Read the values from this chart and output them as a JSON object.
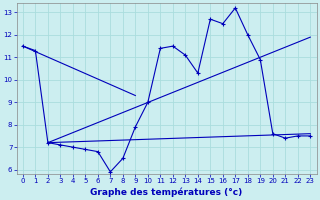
{
  "xlabel": "Graphe des températures (°c)",
  "xlim": [
    -0.5,
    23.5
  ],
  "ylim": [
    5.8,
    13.4
  ],
  "yticks": [
    6,
    7,
    8,
    9,
    10,
    11,
    12,
    13
  ],
  "xticks": [
    0,
    1,
    2,
    3,
    4,
    5,
    6,
    7,
    8,
    9,
    10,
    11,
    12,
    13,
    14,
    15,
    16,
    17,
    18,
    19,
    20,
    21,
    22,
    23
  ],
  "bg_color": "#cceef0",
  "grid_color": "#aadddd",
  "line_color": "#0000bb",
  "series1_x": [
    0,
    1,
    2,
    3,
    4,
    5,
    6,
    7,
    8,
    9,
    10,
    11,
    12,
    13,
    14,
    15,
    16,
    17,
    18,
    19,
    20,
    21,
    22,
    23
  ],
  "series1_y": [
    11.5,
    11.3,
    7.2,
    7.1,
    7.0,
    6.9,
    6.8,
    5.9,
    6.5,
    7.9,
    9.0,
    11.4,
    11.5,
    11.1,
    10.3,
    12.7,
    12.5,
    13.2,
    12.0,
    10.9,
    7.6,
    7.4,
    7.5,
    7.5
  ],
  "series2_x": [
    0,
    9
  ],
  "series2_y": [
    11.5,
    9.3
  ],
  "series3_x": [
    2,
    23
  ],
  "series3_y": [
    7.2,
    11.9
  ],
  "series4_x": [
    2,
    23
  ],
  "series4_y": [
    7.2,
    7.6
  ]
}
